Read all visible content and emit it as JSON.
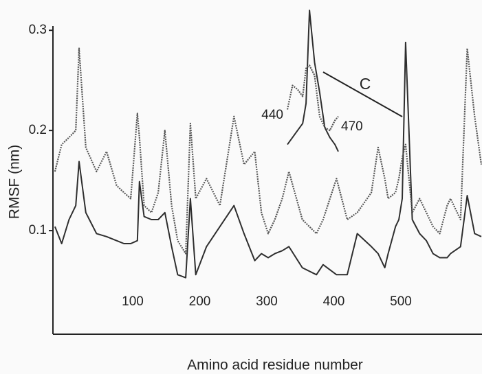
{
  "chart_data": [
    {
      "type": "line",
      "xlabel": "Amino acid residue number",
      "ylabel": "RMSF (nm)",
      "x": [
        -16,
        -6,
        5,
        15,
        20,
        30,
        46,
        61,
        76,
        87,
        97,
        107,
        110,
        117,
        128,
        138,
        148,
        158,
        167,
        179,
        186,
        194,
        210,
        230,
        251,
        266,
        282,
        292,
        302,
        312,
        323,
        333,
        353,
        374,
        384,
        404,
        420,
        435,
        456,
        466,
        476,
        481,
        492,
        497,
        502,
        507,
        517,
        528,
        538,
        548,
        558,
        569,
        574,
        589,
        599,
        610,
        620
      ],
      "series": [
        {
          "color": "#2e2e2e",
          "style": "solid",
          "values": [
            0.104,
            0.087,
            0.111,
            0.125,
            0.169,
            0.118,
            0.097,
            0.094,
            0.09,
            0.087,
            0.087,
            0.09,
            0.149,
            0.114,
            0.111,
            0.111,
            0.118,
            0.084,
            0.056,
            0.053,
            0.132,
            0.056,
            0.084,
            0.104,
            0.125,
            0.097,
            0.07,
            0.077,
            0.073,
            0.077,
            0.08,
            0.084,
            0.063,
            0.056,
            0.066,
            0.056,
            0.056,
            0.097,
            0.084,
            0.077,
            0.063,
            0.077,
            0.104,
            0.111,
            0.132,
            0.288,
            0.111,
            0.097,
            0.09,
            0.077,
            0.073,
            0.073,
            0.077,
            0.084,
            0.135,
            0.097,
            0.094
          ]
        },
        {
          "color": "#555555",
          "style": "dotted",
          "values": [
            0.159,
            0.186,
            0.193,
            0.2,
            0.282,
            0.183,
            0.159,
            0.179,
            0.145,
            0.138,
            0.132,
            0.217,
            0.193,
            0.125,
            0.118,
            0.138,
            0.2,
            0.125,
            0.09,
            0.077,
            0.207,
            0.132,
            0.152,
            0.125,
            0.214,
            0.166,
            0.179,
            0.118,
            0.097,
            0.111,
            0.132,
            0.159,
            0.111,
            0.097,
            0.111,
            0.152,
            0.111,
            0.118,
            0.138,
            0.183,
            0.152,
            0.132,
            0.138,
            0.152,
            0.173,
            0.186,
            0.118,
            0.132,
            0.118,
            0.104,
            0.097,
            0.125,
            0.132,
            0.111,
            0.282,
            0.214,
            0.166
          ]
        }
      ],
      "xlim": [
        -19,
        621
      ],
      "ylim": [
        0,
        0.32
      ],
      "xticks": [
        100,
        200,
        300,
        400,
        500
      ],
      "yticks": [
        0.1,
        0.2,
        0.3
      ]
    },
    {
      "type": "line",
      "annotation": "C",
      "x": [
        440,
        443,
        446,
        449,
        451,
        453,
        456,
        459,
        462,
        465,
        468,
        470
      ],
      "series": [
        {
          "color": "#2e2e2e",
          "style": "solid",
          "values": [
            0.186,
            0.193,
            0.2,
            0.207,
            0.227,
            0.32,
            0.268,
            0.238,
            0.203,
            0.193,
            0.186,
            0.179
          ]
        },
        {
          "color": "#555555",
          "style": "dotted",
          "values": [
            0.221,
            0.245,
            0.241,
            0.234,
            0.262,
            0.265,
            0.255,
            0.214,
            0.203,
            0.2,
            0.21,
            0.214
          ]
        }
      ],
      "xlim": [
        440,
        470
      ],
      "ylim": [
        0,
        0.32
      ],
      "xticks": [
        440,
        470
      ]
    }
  ]
}
